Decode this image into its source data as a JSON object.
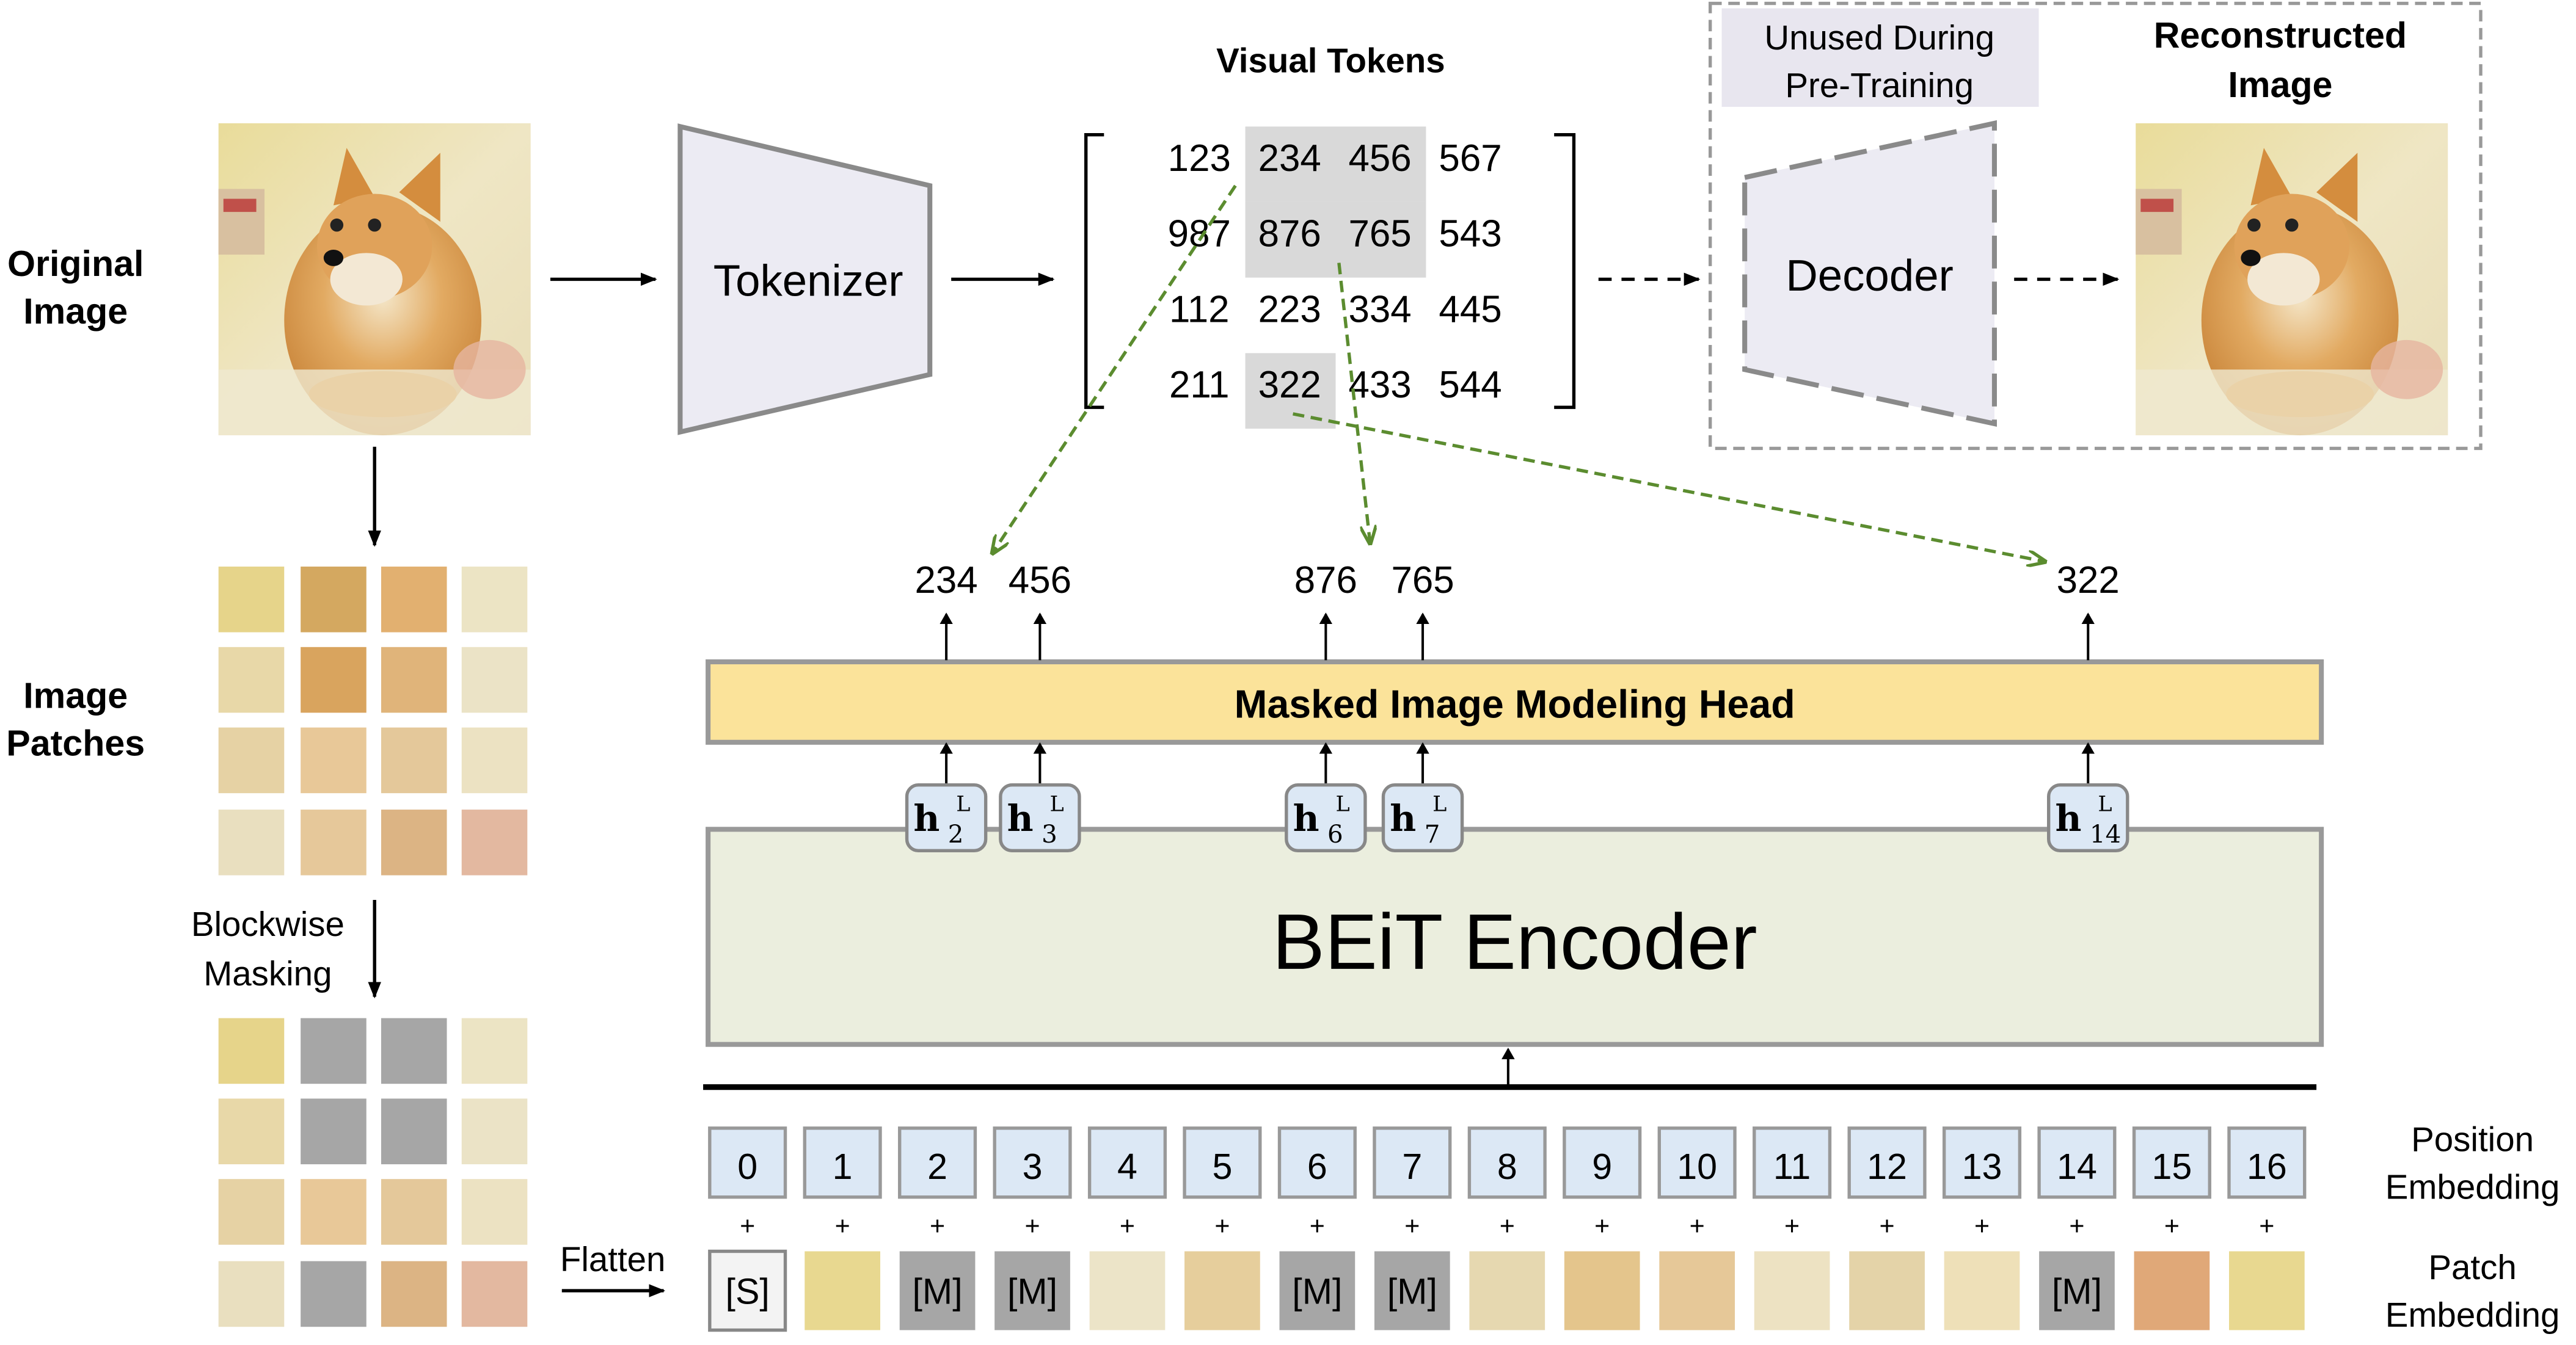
{
  "labels": {
    "original_image": [
      "Original",
      "Image"
    ],
    "image_patches": [
      "Image",
      "Patches"
    ],
    "blockwise_masking": [
      "Blockwise",
      "Masking"
    ],
    "flatten": "Flatten",
    "tokenizer": "Tokenizer",
    "visual_tokens": "Visual Tokens",
    "unused": [
      "Unused During",
      "Pre-Training"
    ],
    "decoder": "Decoder",
    "reconstructed_image": [
      "Reconstructed",
      "Image"
    ],
    "mim_head": "Masked Image Modeling Head",
    "encoder": "BEiT Encoder",
    "position_embedding": [
      "Position",
      "Embedding"
    ],
    "patch_embedding": [
      "Patch",
      "Embedding"
    ]
  },
  "visual_tokens": [
    [
      "123",
      "234",
      "456",
      "567"
    ],
    [
      "987",
      "876",
      "765",
      "543"
    ],
    [
      "112",
      "223",
      "334",
      "445"
    ],
    [
      "211",
      "322",
      "433",
      "544"
    ]
  ],
  "highlighted_tokens": [
    [
      0,
      1
    ],
    [
      0,
      2
    ],
    [
      1,
      1
    ],
    [
      1,
      2
    ],
    [
      3,
      1
    ]
  ],
  "predicted_tokens": [
    {
      "value": "234",
      "h_index": "2"
    },
    {
      "value": "456",
      "h_index": "3"
    },
    {
      "value": "876",
      "h_index": "6"
    },
    {
      "value": "765",
      "h_index": "7"
    },
    {
      "value": "322",
      "h_index": "14"
    }
  ],
  "hidden_state_symbol": "h",
  "hidden_state_superscript": "L",
  "positions": [
    "0",
    "1",
    "2",
    "3",
    "4",
    "5",
    "6",
    "7",
    "8",
    "9",
    "10",
    "11",
    "12",
    "13",
    "14",
    "15",
    "16"
  ],
  "patch_tokens": [
    "[S]",
    "img",
    "[M]",
    "[M]",
    "img",
    "img",
    "[M]",
    "[M]",
    "img",
    "img",
    "img",
    "img",
    "img",
    "img",
    "[M]",
    "img",
    "img"
  ],
  "masked_grid": [
    [
      false,
      true,
      true,
      false
    ],
    [
      false,
      true,
      true,
      false
    ],
    [
      false,
      false,
      false,
      false
    ],
    [
      false,
      true,
      false,
      false
    ]
  ],
  "plus_sign": "+",
  "colors": {
    "tokenizer_fill": "#ecebf3",
    "mim_head_fill": "#fbe39a",
    "encoder_fill": "#ebeede",
    "embedding_fill": "#dce8f5",
    "mask_gray": "#a6a6a6",
    "token_highlight": "#d9d9d9",
    "green_arrow": "#5b8c2f"
  }
}
